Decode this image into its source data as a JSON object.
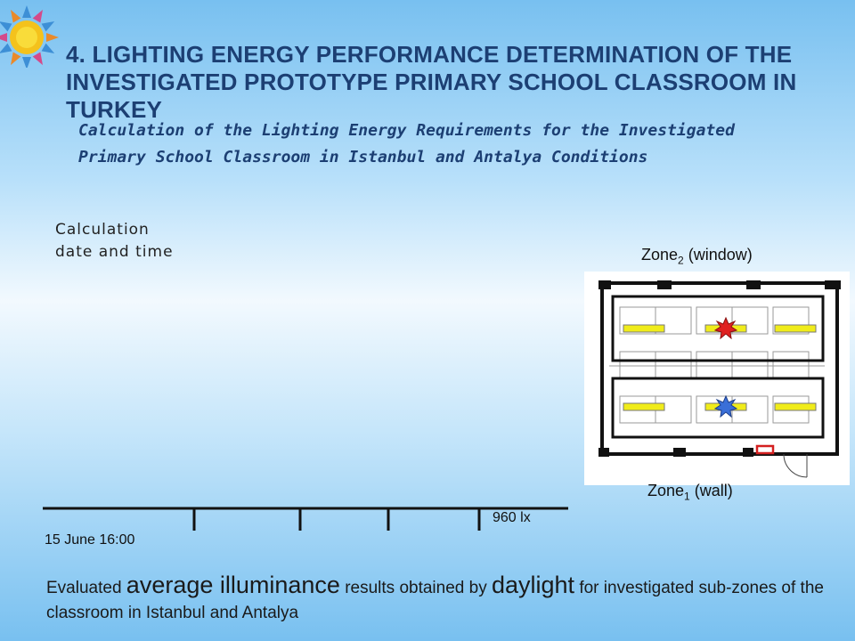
{
  "slide": {
    "title": "4. LIGHTING ENERGY PERFORMANCE DETERMINATION OF THE INVESTIGATED PROTOTYPE PRIMARY SCHOOL CLASSROOM IN TURKEY",
    "subtitle": "Calculation of the Lighting Energy Requirements for the Investigated Primary School Classroom in Istanbul and Antalya Conditions",
    "calc_label_line1": "Calculation",
    "calc_label_line2": "date and time",
    "time_value": "15 June 16:00",
    "lux_value": "960 lx",
    "zone2": {
      "prefix": "Zone",
      "sub": "2",
      "suffix": " (window)"
    },
    "zone1": {
      "prefix": "Zone",
      "sub": "1",
      "suffix": " (wall)"
    },
    "caption": {
      "part1": "Evaluated ",
      "emph1": "average illuminance",
      "part2": " results obtained by ",
      "emph2": "daylight",
      "part3": " for investigated sub-zones of the classroom in Istanbul and Antalya"
    }
  },
  "colors": {
    "title": "#1c3f73",
    "luminaire": "#f0ec1a",
    "star_red": "#e02020",
    "star_blue": "#3a6fd8",
    "door_marker": "#d42020"
  },
  "icons": [
    "sun-logo-icon",
    "red-star-icon",
    "blue-star-icon"
  ]
}
